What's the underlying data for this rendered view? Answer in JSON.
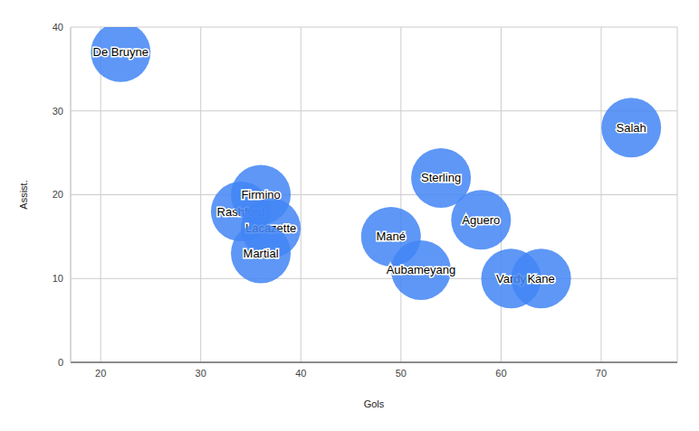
{
  "chart_data": {
    "type": "scatter",
    "x_label": "Gols",
    "y_label": "Assist.",
    "labels": [
      "De Bruyne",
      "Rashford",
      "Firmino",
      "Lacazette",
      "Martial",
      "Mané",
      "Aubameyang",
      "Sterling",
      "Aguero",
      "Vardy",
      "Kane",
      "Salah"
    ],
    "x": [
      22,
      34,
      36,
      37,
      36,
      49,
      52,
      54,
      58,
      61,
      64,
      73
    ],
    "y": [
      37,
      18,
      20,
      16,
      13,
      15,
      11,
      22,
      17,
      10,
      10,
      28
    ],
    "color": "#4285f4",
    "xlim": [
      17,
      77.6
    ],
    "xticks": [
      20,
      30,
      40,
      50,
      60,
      70
    ],
    "ylim": [
      0,
      40
    ],
    "yticks": [
      0,
      10,
      20,
      30,
      40
    ],
    "grid": true,
    "data_labels": true
  }
}
